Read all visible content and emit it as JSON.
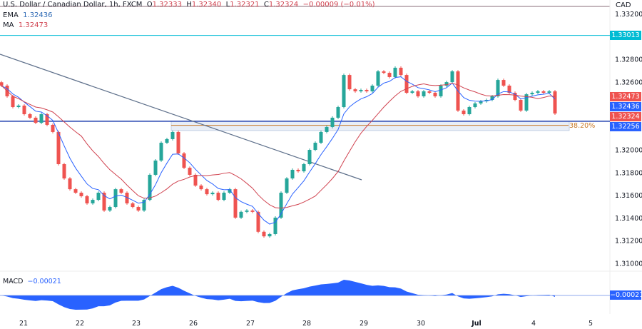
{
  "header": {
    "symbol": "U.S. Dollar / Canadian Dollar, 1h, FXCM",
    "o_label": "O",
    "open": "1.32333",
    "h_label": "H",
    "high": "1.32340",
    "l_label": "L",
    "low": "1.32321",
    "c_label": "C",
    "close": "1.32324",
    "change": "−0.00009 (−0.01%)"
  },
  "indicators": {
    "ema_label": "EMA",
    "ema_value": "1.32436",
    "ma_label": "MA",
    "ma_value": "1.32473",
    "macd_label": "MACD",
    "macd_value": "−0.00021"
  },
  "currency": "CAD",
  "colors": {
    "up": "#26a69a",
    "down": "#ef5350",
    "ema": "#2962ff",
    "ma": "#d0424f",
    "macd": "#2962ff",
    "resistance": "#00bcd4",
    "support": "#1e3fae",
    "fib": "#c97a2a",
    "trendline": "#5d6f8a"
  },
  "chart_data": {
    "type": "candlestick",
    "price_ticks": [
      "1.33200",
      "1.32800",
      "1.32600",
      "1.32000",
      "1.31800",
      "1.31600",
      "1.31400",
      "1.31200",
      "1.31000"
    ],
    "ylim": [
      1.309,
      1.3332
    ],
    "x_ticks": [
      "21",
      "22",
      "23",
      "26",
      "27",
      "28",
      "29",
      "30",
      "Jul",
      "4",
      "5"
    ],
    "closes": [
      1.3257,
      1.32476,
      1.32381,
      1.32394,
      1.32318,
      1.32287,
      1.32242,
      1.32318,
      1.32224,
      1.32161,
      1.31877,
      1.31751,
      1.31656,
      1.31625,
      1.31594,
      1.31531,
      1.31562,
      1.31625,
      1.31468,
      1.31499,
      1.31656,
      1.31625,
      1.31531,
      1.31499,
      1.31468,
      1.31562,
      1.31783,
      1.31909,
      1.32066,
      1.32098,
      1.32161,
      1.31972,
      1.31845,
      1.31783,
      1.31688,
      1.31656,
      1.31612,
      1.31625,
      1.31562,
      1.31625,
      1.31656,
      1.31405,
      1.31456,
      1.31468,
      1.31456,
      1.3128,
      1.3124,
      1.3126,
      1.31405,
      1.31625,
      1.31751,
      1.31827,
      1.31814,
      1.31877,
      1.32003,
      1.32066,
      1.32161,
      1.32205,
      1.32287,
      1.32381,
      1.32664,
      1.32538,
      1.3252,
      1.32532,
      1.3252,
      1.3257,
      1.32696,
      1.32683,
      1.32646,
      1.32728,
      1.32664,
      1.32507,
      1.3252,
      1.32476,
      1.3252,
      1.32507,
      1.32476,
      1.3257,
      1.32601,
      1.32696,
      1.3235,
      1.32318,
      1.32381,
      1.32413,
      1.32432,
      1.32444,
      1.32476,
      1.3262,
      1.3257,
      1.32507,
      1.32444,
      1.3235,
      1.32494,
      1.32507,
      1.3252,
      1.32507,
      1.3252,
      1.32324
    ],
    "levels": {
      "resistance": "1.33013",
      "support": "1.32256",
      "fib_label": "38.20%",
      "fib_price": 1.3222
    },
    "price_badges": [
      {
        "value": "1.33013",
        "color": "#00bcd4"
      },
      {
        "value": "1.32473",
        "color": "#ef5350"
      },
      {
        "value": "1.32436",
        "color": "#2962ff"
      },
      {
        "value": "1.32324",
        "color": "#ef5350"
      },
      {
        "value": "1.32256",
        "color": "#2962ff"
      }
    ],
    "macd_badge": "−0.00021"
  }
}
